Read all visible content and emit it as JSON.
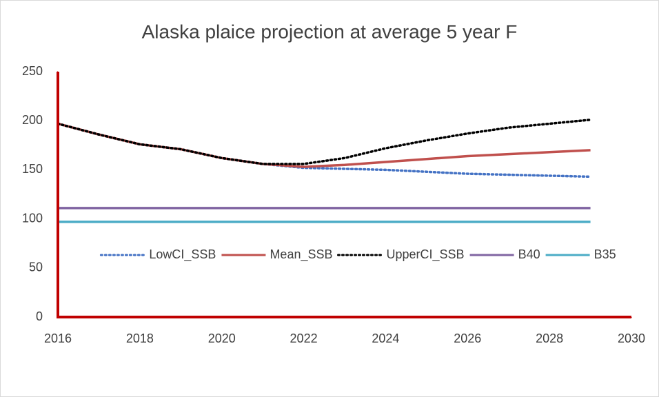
{
  "chart_data": {
    "type": "line",
    "title": "Alaska plaice projection at average 5 year F",
    "x": [
      2016,
      2017,
      2018,
      2019,
      2020,
      2021,
      2022,
      2023,
      2024,
      2025,
      2026,
      2027,
      2028,
      2029
    ],
    "series": [
      {
        "name": "LowCI_SSB",
        "color": "#4472c4",
        "dash": "dotted",
        "values": [
          197,
          186,
          176,
          171,
          162,
          156,
          152,
          151,
          150,
          148,
          146,
          145,
          144,
          143
        ]
      },
      {
        "name": "Mean_SSB",
        "color": "#c0504d",
        "dash": "solid",
        "values": [
          197,
          186,
          176,
          171,
          162,
          156,
          153,
          155,
          158,
          161,
          164,
          166,
          168,
          170
        ]
      },
      {
        "name": "UpperCI_SSB",
        "color": "#000000",
        "dash": "dotted",
        "values": [
          197,
          186,
          176,
          171,
          162,
          156,
          156,
          162,
          172,
          180,
          187,
          193,
          197,
          201
        ]
      },
      {
        "name": "B40",
        "color": "#8064a2",
        "dash": "solid",
        "values": [
          111,
          111,
          111,
          111,
          111,
          111,
          111,
          111,
          111,
          111,
          111,
          111,
          111,
          111
        ]
      },
      {
        "name": "B35",
        "color": "#4bacc6",
        "dash": "solid",
        "values": [
          97,
          97,
          97,
          97,
          97,
          97,
          97,
          97,
          97,
          97,
          97,
          97,
          97,
          97
        ]
      }
    ],
    "xlim": [
      2016,
      2030
    ],
    "xticks": [
      2016,
      2018,
      2020,
      2022,
      2024,
      2026,
      2028,
      2030
    ],
    "ylim": [
      0,
      250
    ],
    "yticks": [
      0,
      50,
      100,
      150,
      200,
      250
    ],
    "axis_color": "#c00000",
    "grid": false,
    "legend": "middle"
  }
}
